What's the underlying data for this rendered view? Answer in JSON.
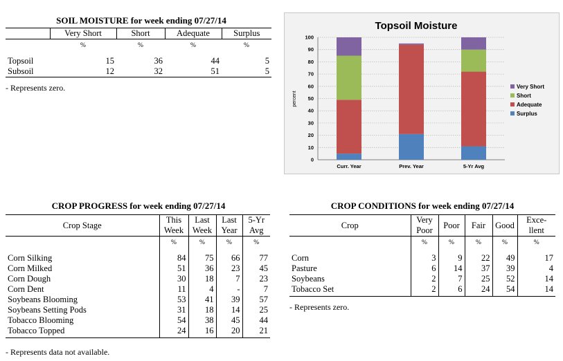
{
  "soil": {
    "title": "SOIL MOISTURE for week ending 07/27/14",
    "headers": [
      "Very Short",
      "Short",
      "Adequate",
      "Surplus"
    ],
    "unit": "%",
    "rows": [
      {
        "label": "Topsoil",
        "values": [
          "15",
          "36",
          "44",
          "5"
        ]
      },
      {
        "label": "Subsoil",
        "values": [
          "12",
          "32",
          "51",
          "5"
        ]
      }
    ],
    "note": "- Represents zero."
  },
  "progress": {
    "title": "CROP PROGRESS for week ending 07/27/14",
    "stage_header": "Crop Stage",
    "headers": [
      {
        "l1": "This",
        "l2": "Week"
      },
      {
        "l1": "Last",
        "l2": "Week"
      },
      {
        "l1": "Last",
        "l2": "Year"
      },
      {
        "l1": "5-Yr",
        "l2": "Avg"
      }
    ],
    "unit": "%",
    "rows": [
      {
        "label": "Corn Silking",
        "values": [
          "84",
          "75",
          "66",
          "77"
        ]
      },
      {
        "label": "Corn Milked",
        "values": [
          "51",
          "36",
          "23",
          "45"
        ]
      },
      {
        "label": "Corn Dough",
        "values": [
          "30",
          "18",
          "7",
          "23"
        ]
      },
      {
        "label": "Corn Dent",
        "values": [
          "11",
          "4",
          "-",
          "7"
        ]
      },
      {
        "label": "Soybeans Blooming",
        "values": [
          "53",
          "41",
          "39",
          "57"
        ]
      },
      {
        "label": "Soybeans Setting Pods",
        "values": [
          "31",
          "18",
          "14",
          "25"
        ]
      },
      {
        "label": "Tobacco Blooming",
        "values": [
          "54",
          "38",
          "45",
          "44"
        ]
      },
      {
        "label": "Tobacco Topped",
        "values": [
          "24",
          "16",
          "20",
          "21"
        ]
      }
    ],
    "note": "- Represents data not available."
  },
  "conditions": {
    "title": "CROP CONDITIONS for week ending 07/27/14",
    "crop_header": "Crop",
    "headers": [
      {
        "l1": "Very",
        "l2": "Poor"
      },
      {
        "l1": "Poor",
        "l2": ""
      },
      {
        "l1": "Fair",
        "l2": ""
      },
      {
        "l1": "Good",
        "l2": ""
      },
      {
        "l1": "Exce-",
        "l2": "llent"
      }
    ],
    "unit": "%",
    "rows": [
      {
        "label": "Corn",
        "values": [
          "3",
          "9",
          "22",
          "49",
          "17"
        ]
      },
      {
        "label": "Pasture",
        "values": [
          "6",
          "14",
          "37",
          "39",
          "4"
        ]
      },
      {
        "label": "Soybeans",
        "values": [
          "2",
          "7",
          "25",
          "52",
          "14"
        ]
      },
      {
        "label": "Tobacco Set",
        "values": [
          "2",
          "6",
          "24",
          "54",
          "14"
        ]
      }
    ],
    "note": "- Represents zero."
  },
  "chart_data": {
    "type": "bar",
    "stacked": true,
    "title": "Topsoil Moisture",
    "ylabel": "percent",
    "ylim": [
      0,
      100
    ],
    "yticks": [
      0,
      10,
      20,
      30,
      40,
      50,
      60,
      70,
      80,
      90,
      100
    ],
    "categories": [
      "Curr. Year",
      "Prev. Year",
      "5-Yr Avg"
    ],
    "series": [
      {
        "name": "Surplus",
        "color": "#4f81bd",
        "values": [
          5,
          21,
          11
        ]
      },
      {
        "name": "Adequate",
        "color": "#c0504d",
        "values": [
          44,
          73,
          61
        ]
      },
      {
        "name": "Short",
        "color": "#9bbb59",
        "values": [
          36,
          0,
          18
        ]
      },
      {
        "name": "Very Short",
        "color": "#8064a2",
        "values": [
          15,
          1,
          10
        ]
      }
    ],
    "legend": "right",
    "grid": true
  }
}
